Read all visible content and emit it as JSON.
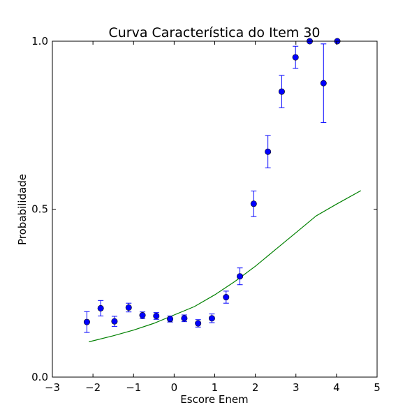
{
  "chart_data": {
    "type": "scatter",
    "title": "Curva Característica do Item 30",
    "xlabel": "Escore Enem",
    "ylabel": "Probabilidade",
    "xlim": [
      -3,
      5
    ],
    "ylim": [
      0.0,
      1.0
    ],
    "xticks": [
      -3,
      -2,
      -1,
      0,
      1,
      2,
      3,
      4,
      5
    ],
    "xtick_labels": [
      "−3",
      "−2",
      "−1",
      "0",
      "1",
      "2",
      "3",
      "4",
      "5"
    ],
    "yticks": [
      0.0,
      0.5,
      1.0
    ],
    "ytick_labels": [
      "0.0",
      "0.5",
      "1.0"
    ],
    "grid": false,
    "series": [
      {
        "kind": "errorbar",
        "color": "#0000ff",
        "points": [
          {
            "x": -2.15,
            "y": 0.164,
            "err": 0.031
          },
          {
            "x": -1.81,
            "y": 0.205,
            "err": 0.023
          },
          {
            "x": -1.47,
            "y": 0.166,
            "err": 0.015
          },
          {
            "x": -1.12,
            "y": 0.207,
            "err": 0.013
          },
          {
            "x": -0.78,
            "y": 0.184,
            "err": 0.01
          },
          {
            "x": -0.44,
            "y": 0.182,
            "err": 0.01
          },
          {
            "x": -0.1,
            "y": 0.173,
            "err": 0.009
          },
          {
            "x": 0.25,
            "y": 0.175,
            "err": 0.01
          },
          {
            "x": 0.59,
            "y": 0.16,
            "err": 0.011
          },
          {
            "x": 0.93,
            "y": 0.175,
            "err": 0.013
          },
          {
            "x": 1.28,
            "y": 0.238,
            "err": 0.018
          },
          {
            "x": 1.62,
            "y": 0.3,
            "err": 0.025
          },
          {
            "x": 1.96,
            "y": 0.516,
            "err": 0.038
          },
          {
            "x": 2.31,
            "y": 0.671,
            "err": 0.048
          },
          {
            "x": 2.65,
            "y": 0.85,
            "err": 0.048
          },
          {
            "x": 2.99,
            "y": 0.952,
            "err": 0.033
          },
          {
            "x": 3.34,
            "y": 1.0,
            "err": 0.0
          },
          {
            "x": 3.68,
            "y": 0.875,
            "err": 0.117
          },
          {
            "x": 4.02,
            "y": 1.0,
            "err": 0.0
          }
        ]
      },
      {
        "kind": "line",
        "color": "#008000",
        "x": [
          -2.1,
          -1.5,
          -1.0,
          -0.5,
          0.0,
          0.5,
          1.0,
          1.5,
          2.0,
          2.5,
          3.0,
          3.5,
          4.0,
          4.6
        ],
        "y": [
          0.105,
          0.123,
          0.14,
          0.16,
          0.185,
          0.21,
          0.245,
          0.285,
          0.33,
          0.38,
          0.43,
          0.48,
          0.515,
          0.555
        ]
      }
    ]
  }
}
